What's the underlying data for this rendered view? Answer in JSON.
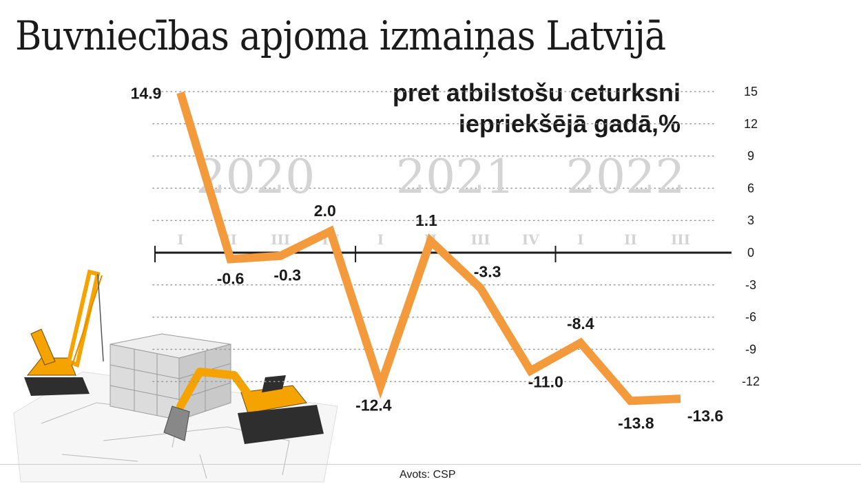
{
  "title": "Buvniecības apjoma izmaiņas Latvijā",
  "subtitle_lines": [
    "pret atbilstošu ceturksni",
    "iepriekšējā gadā,%"
  ],
  "source": "Avots: CSP",
  "colors": {
    "line": "#f39a3c",
    "text": "#1a1a1a",
    "grid": "#999999",
    "year_label": "#d4d4d4",
    "quarter_label": "#d4d4d4"
  },
  "chart_data": {
    "type": "line",
    "x": [
      "2020 I",
      "2020 II",
      "2020 III",
      "2020 IV",
      "2021 I",
      "2021 II",
      "2021 III",
      "2021 IV",
      "2022 I",
      "2022 II",
      "2022 III"
    ],
    "quarter_labels": [
      "I",
      "II",
      "III",
      "IV",
      "I",
      "II",
      "III",
      "IV",
      "I",
      "II",
      "III"
    ],
    "year_labels": [
      "2020",
      "2021",
      "2022"
    ],
    "values": [
      14.9,
      -0.6,
      -0.3,
      2.0,
      -12.4,
      1.1,
      -3.3,
      -11.0,
      -8.4,
      -13.8,
      -13.6
    ],
    "data_labels": [
      "14.9",
      "-0.6",
      "-0.3",
      "2.0",
      "-12.4",
      "1.1",
      "-3.3",
      "-11.0",
      "-8.4",
      "-13.8",
      "-13.6"
    ],
    "y_ticks": [
      15,
      12,
      9,
      6,
      3,
      0,
      -3,
      -6,
      -9,
      -12
    ],
    "y_tick_labels": [
      "15",
      "12",
      "9",
      "6",
      "3",
      "0",
      "-3",
      "-6",
      "-9",
      "-12"
    ],
    "ylim": [
      -15,
      15
    ],
    "y_axis_side": "right",
    "grid": "dotted horizontal"
  }
}
